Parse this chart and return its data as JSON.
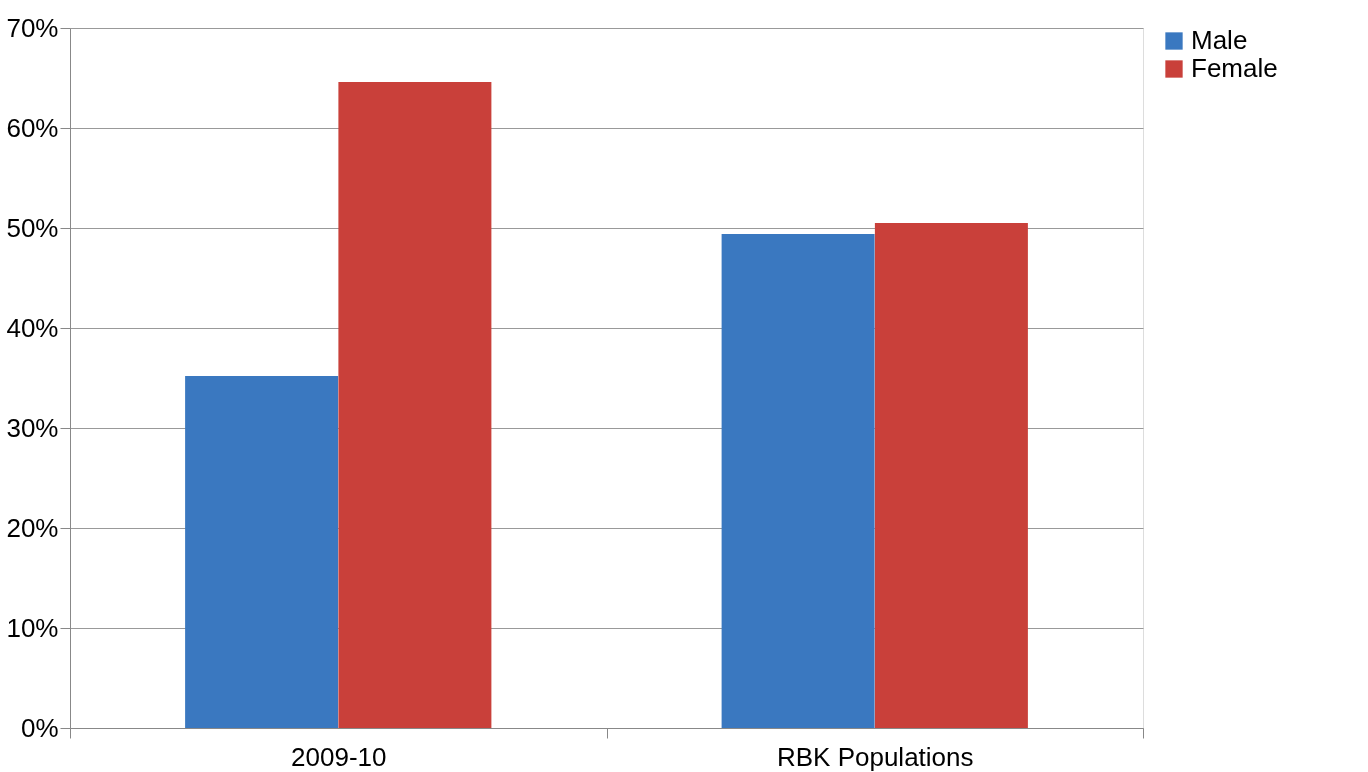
{
  "chart_data": {
    "type": "bar",
    "categories": [
      "2009-10",
      "RBK Populations"
    ],
    "series": [
      {
        "name": "Male",
        "color": "#3a78c0",
        "values": [
          35.2,
          49.4
        ]
      },
      {
        "name": "Female",
        "color": "#c9403a",
        "values": [
          64.6,
          50.5
        ]
      }
    ],
    "ylim": [
      0,
      70
    ],
    "yticks": [
      {
        "value": 0,
        "label": "0%"
      },
      {
        "value": 10,
        "label": "10%"
      },
      {
        "value": 20,
        "label": "20%"
      },
      {
        "value": 30,
        "label": "30%"
      },
      {
        "value": 40,
        "label": "40%"
      },
      {
        "value": 50,
        "label": "50%"
      },
      {
        "value": 60,
        "label": "60%"
      },
      {
        "value": 70,
        "label": "70%"
      }
    ],
    "grid": "y",
    "legend": "right"
  }
}
